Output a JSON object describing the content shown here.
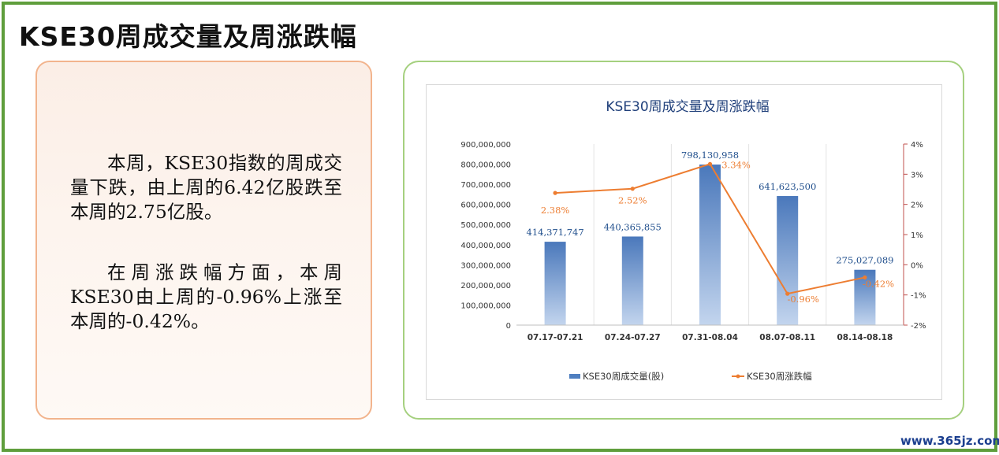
{
  "page": {
    "title": "KSE30周成交量及周涨跌幅",
    "paragraphs": [
      "本周，KSE30指数的周成交量下跌，由上周的6.42亿股跌至本周的2.75亿股。",
      "在周涨跌幅方面，本周KSE30由上周的-0.96%上涨至本周的-0.42%。"
    ],
    "watermark": "www.365jz.com"
  },
  "colors": {
    "frame": "#5f9e3c",
    "bar": "#4f7fc0",
    "line": "#ed7d31",
    "label_blue": "#1f4e8c",
    "label_orange": "#ed7d31"
  },
  "chart_data": {
    "type": "bar",
    "title": "KSE30周成交量及周涨跌幅",
    "categories": [
      "07.17-07.21",
      "07.24-07.27",
      "07.31-08.04",
      "08.07-08.11",
      "08.14-08.18"
    ],
    "series": [
      {
        "name": "KSE30周成交量(股)",
        "type": "bar",
        "axis": "left",
        "values": [
          414371747,
          440365855,
          798130958,
          641623500,
          275027089
        ],
        "labels": [
          "414,371,747",
          "440,365,855",
          "798,130,958",
          "641,623,500",
          "275,027,089"
        ]
      },
      {
        "name": "KSE30周涨跌幅",
        "type": "line",
        "axis": "right",
        "values": [
          2.38,
          2.52,
          3.34,
          -0.96,
          -0.42
        ],
        "labels": [
          "2.38%",
          "2.52%",
          "3.34%",
          "-0.96%",
          "-0.42%"
        ]
      }
    ],
    "left_axis": {
      "ylim": [
        0,
        900000000
      ],
      "ticks": [
        0,
        100000000,
        200000000,
        300000000,
        400000000,
        500000000,
        600000000,
        700000000,
        800000000,
        900000000
      ],
      "tick_labels": [
        "0",
        "100,000,000",
        "200,000,000",
        "300,000,000",
        "400,000,000",
        "500,000,000",
        "600,000,000",
        "700,000,000",
        "800,000,000",
        "900,000,000"
      ]
    },
    "right_axis": {
      "ylim": [
        -2,
        4
      ],
      "ticks": [
        -2,
        -1,
        0,
        1,
        2,
        3,
        4
      ],
      "tick_labels": [
        "-2%",
        "-1%",
        "0%",
        "1%",
        "2%",
        "3%",
        "4%"
      ]
    },
    "grid": true,
    "legend": "bottom"
  }
}
